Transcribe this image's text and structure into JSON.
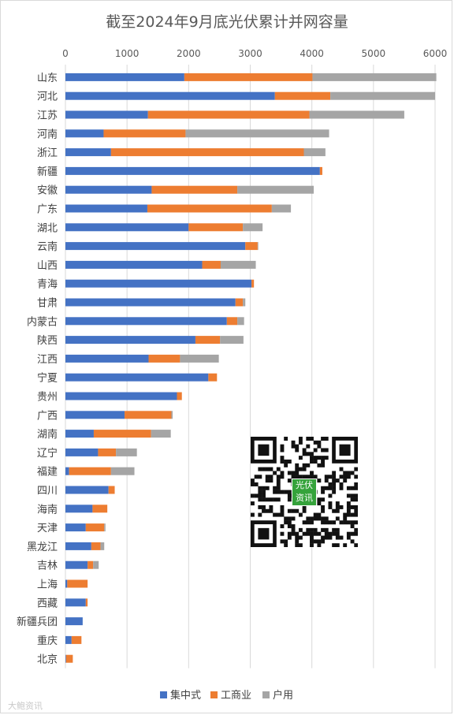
{
  "chart_data": {
    "type": "bar",
    "orientation": "horizontal",
    "stacked": true,
    "title": "截至2024年9月底光伏累计并网容量",
    "categories": [
      "山东",
      "河北",
      "江苏",
      "河南",
      "浙江",
      "新疆",
      "安徽",
      "广东",
      "湖北",
      "云南",
      "山西",
      "青海",
      "甘肃",
      "内蒙古",
      "陕西",
      "江西",
      "宁夏",
      "贵州",
      "广西",
      "湖南",
      "辽宁",
      "福建",
      "四川",
      "海南",
      "天津",
      "黑龙江",
      "吉林",
      "上海",
      "西藏",
      "新疆兵团",
      "重庆",
      "北京"
    ],
    "series": [
      {
        "name": "集中式",
        "color": "#4472c4",
        "values": [
          1930,
          3400,
          1340,
          620,
          740,
          4130,
          1400,
          1330,
          2000,
          2920,
          2220,
          3020,
          2760,
          2620,
          2110,
          1350,
          2320,
          1810,
          960,
          460,
          530,
          60,
          700,
          440,
          330,
          420,
          360,
          30,
          330,
          280,
          100,
          10
        ]
      },
      {
        "name": "工商业",
        "color": "#ed7d31",
        "values": [
          2080,
          900,
          2620,
          1330,
          3130,
          40,
          1390,
          2020,
          880,
          200,
          300,
          40,
          120,
          170,
          400,
          510,
          140,
          80,
          760,
          930,
          290,
          680,
          100,
          240,
          300,
          150,
          90,
          330,
          30,
          0,
          160,
          110
        ]
      },
      {
        "name": "户用",
        "color": "#a5a5a5",
        "values": [
          2010,
          1700,
          1540,
          2330,
          350,
          0,
          1240,
          310,
          320,
          10,
          570,
          0,
          40,
          110,
          380,
          630,
          0,
          0,
          20,
          320,
          340,
          380,
          0,
          0,
          20,
          60,
          90,
          0,
          0,
          0,
          0,
          0
        ]
      }
    ],
    "xlim": [
      0,
      6000
    ],
    "xticks": [
      0,
      1000,
      2000,
      3000,
      4000,
      5000,
      6000
    ],
    "grid": true,
    "legend_position": "bottom"
  },
  "qr_badge": [
    "光伏",
    "资讯"
  ],
  "watermark": "大鲍资讯"
}
